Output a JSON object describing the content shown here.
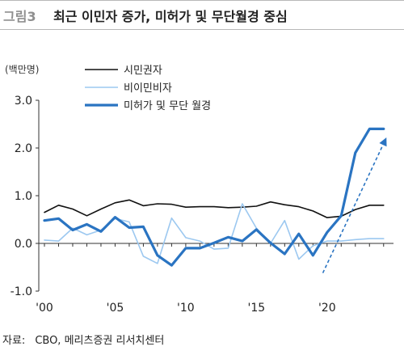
{
  "header": {
    "figure_label": "그림3",
    "title": "최근 이민자 증가, 미허가 및 무단월경 중심"
  },
  "source": {
    "label": "자료:",
    "text": "CBO, 메리츠증권 리서치센터"
  },
  "colors": {
    "citizens": "#111111",
    "nonimmigrant": "#9cc8f0",
    "unauthorized": "#2a74c2",
    "trend_arrow": "#2a74c2",
    "header_rule": "#b8b8b8"
  },
  "chart_data": {
    "type": "line",
    "unit_label": "(백만명)",
    "x": [
      2000,
      2001,
      2002,
      2003,
      2004,
      2005,
      2006,
      2007,
      2008,
      2009,
      2010,
      2011,
      2012,
      2013,
      2014,
      2015,
      2016,
      2017,
      2018,
      2019,
      2020,
      2021,
      2022,
      2023,
      2024
    ],
    "x_tick_values": [
      2000,
      2005,
      2010,
      2015,
      2020
    ],
    "x_tick_labels": [
      "'00",
      "'05",
      "'10",
      "'15",
      "'20"
    ],
    "xlim": [
      1999.6,
      2024.7
    ],
    "ylim": [
      -1.0,
      3.0
    ],
    "y_ticks": [
      -1.0,
      0.0,
      1.0,
      2.0,
      3.0
    ],
    "y_tick_labels": [
      "-1.0",
      "0.0",
      "1.0",
      "2.0",
      "3.0"
    ],
    "grid": false,
    "legend_position": "top-center",
    "series": [
      {
        "name": "시민권자",
        "style": "thin",
        "values": [
          0.65,
          0.8,
          0.72,
          0.58,
          0.72,
          0.85,
          0.91,
          0.79,
          0.83,
          0.82,
          0.76,
          0.77,
          0.77,
          0.75,
          0.76,
          0.78,
          0.87,
          0.81,
          0.77,
          0.68,
          0.54,
          0.57,
          0.71,
          0.8,
          0.8
        ]
      },
      {
        "name": "비이민비자",
        "style": "thin",
        "values": [
          0.07,
          0.05,
          0.32,
          0.18,
          0.28,
          0.52,
          0.45,
          -0.27,
          -0.42,
          0.53,
          0.12,
          0.05,
          -0.12,
          -0.1,
          0.83,
          0.32,
          0.0,
          0.48,
          -0.33,
          -0.05,
          0.05,
          0.05,
          0.08,
          0.1,
          0.1
        ]
      },
      {
        "name": "미허가 및 무단 월경",
        "style": "thick",
        "values": [
          0.48,
          0.52,
          0.28,
          0.4,
          0.25,
          0.55,
          0.33,
          0.35,
          -0.25,
          -0.46,
          -0.1,
          -0.1,
          0.01,
          0.13,
          0.05,
          0.29,
          0.01,
          -0.22,
          0.2,
          -0.25,
          0.23,
          0.58,
          1.9,
          2.4,
          2.4
        ]
      }
    ],
    "trend_arrow": {
      "from": [
        2019.7,
        -0.62
      ],
      "to": [
        2024.2,
        2.22
      ],
      "style": "dashed"
    }
  }
}
